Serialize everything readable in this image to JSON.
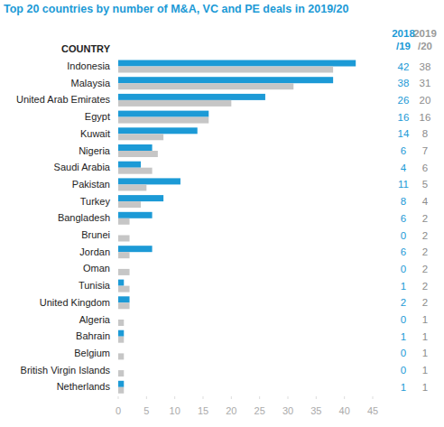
{
  "chart_data": {
    "type": "bar",
    "orientation": "horizontal",
    "title": "Top 20 countries by number of M&A, VC and PE deals in 2019/20",
    "ylabel": "COUNTRY",
    "categories": [
      "Indonesia",
      "Malaysia",
      "United Arab Emirates",
      "Egypt",
      "Kuwait",
      "Nigeria",
      "Saudi Arabia",
      "Pakistan",
      "Turkey",
      "Bangladesh",
      "Brunei",
      "Jordan",
      "Oman",
      "Tunisia",
      "United Kingdom",
      "Algeria",
      "Bahrain",
      "Belgium",
      "British Virgin Islands",
      "Netherlands"
    ],
    "series": [
      {
        "name": "2018/19",
        "color": "#1c9ad6",
        "values": [
          42,
          38,
          26,
          16,
          14,
          6,
          4,
          11,
          8,
          6,
          0,
          6,
          0,
          1,
          2,
          0,
          1,
          0,
          0,
          1
        ]
      },
      {
        "name": "2019/20",
        "color": "#c6c6c6",
        "values": [
          38,
          31,
          20,
          16,
          8,
          7,
          6,
          5,
          4,
          2,
          2,
          2,
          2,
          2,
          2,
          1,
          1,
          1,
          1,
          1
        ]
      }
    ],
    "xlim": [
      0,
      45
    ],
    "xticks": [
      0,
      5,
      10,
      15,
      20,
      25,
      30,
      35,
      40,
      45
    ],
    "grid": false,
    "data_labels": true
  }
}
